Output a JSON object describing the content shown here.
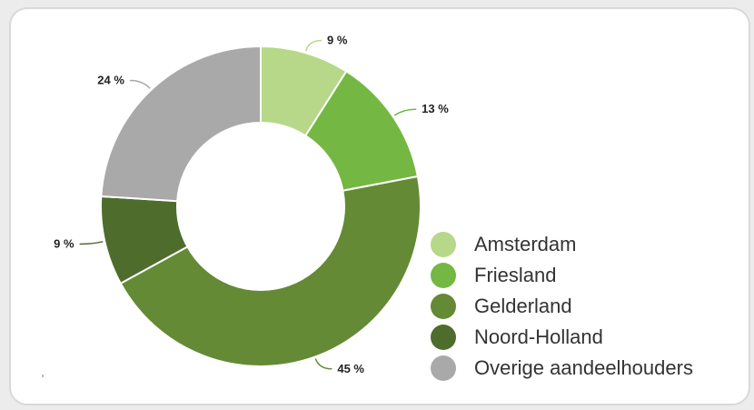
{
  "colors": {
    "background": "#ececec",
    "card": "#ffffff",
    "card_border": "#d9d9d9",
    "text": "#333333"
  },
  "chart_data": {
    "type": "pie",
    "donut": true,
    "categories": [
      "Amsterdam",
      "Friesland",
      "Gelderland",
      "Noord-Holland",
      "Overige aandeelhouders"
    ],
    "values": [
      9,
      13,
      45,
      9,
      24
    ],
    "value_labels": [
      "9 %",
      "13 %",
      "45 %",
      "9 %",
      "24 %"
    ],
    "colors": [
      "#b7d889",
      "#74b843",
      "#648a35",
      "#4e6d2c",
      "#a9a9a9"
    ],
    "start_angle": "12 o'clock",
    "direction": "clockwise",
    "legend_position": "right-bottom",
    "title": "",
    "xlabel": "",
    "ylabel": ""
  }
}
